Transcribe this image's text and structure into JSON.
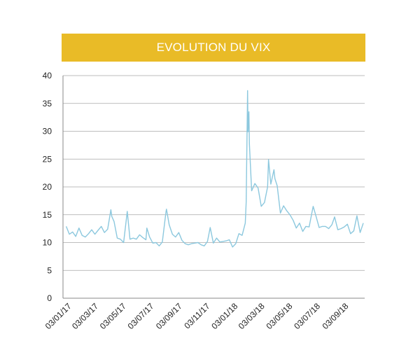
{
  "colors": {
    "banner": "#e9bb27",
    "line": "#8cc8de",
    "grid": "#a8a8a8",
    "axis": "#888888"
  },
  "chart_data": {
    "type": "line",
    "title": "EVOLUTION DU VIX",
    "xlabel": "",
    "ylabel": "",
    "ylim": [
      0,
      40
    ],
    "yticks": [
      "0",
      "5",
      "10",
      "15",
      "20",
      "25",
      "30",
      "35",
      "40"
    ],
    "xtick_labels": [
      "03/01/17",
      "03/03/17",
      "03/05/17",
      "03/07/17",
      "03/09/17",
      "03/11/17",
      "03/01/18",
      "03/03/18",
      "03/05/18",
      "03/07/18",
      "03/09/18"
    ],
    "grid": true,
    "legend": "none",
    "series": [
      {
        "x": [
          "2017-01-03",
          "2017-01-10",
          "2017-01-17",
          "2017-01-24",
          "2017-01-31",
          "2017-02-07",
          "2017-02-14",
          "2017-02-21",
          "2017-02-28",
          "2017-03-07",
          "2017-03-14",
          "2017-03-21",
          "2017-03-28",
          "2017-04-04",
          "2017-04-11",
          "2017-04-13",
          "2017-04-18",
          "2017-04-25",
          "2017-05-02",
          "2017-05-09",
          "2017-05-17",
          "2017-05-23",
          "2017-05-30",
          "2017-06-06",
          "2017-06-13",
          "2017-06-20",
          "2017-06-27",
          "2017-06-29",
          "2017-07-05",
          "2017-07-12",
          "2017-07-19",
          "2017-07-26",
          "2017-08-02",
          "2017-08-10",
          "2017-08-11",
          "2017-08-17",
          "2017-08-24",
          "2017-08-31",
          "2017-09-07",
          "2017-09-14",
          "2017-09-21",
          "2017-09-28",
          "2017-10-05",
          "2017-10-12",
          "2017-10-19",
          "2017-10-26",
          "2017-11-02",
          "2017-11-09",
          "2017-11-15",
          "2017-11-22",
          "2017-11-29",
          "2017-12-06",
          "2017-12-13",
          "2017-12-20",
          "2017-12-27",
          "2018-01-03",
          "2018-01-10",
          "2018-01-17",
          "2018-01-24",
          "2018-01-31",
          "2018-02-02",
          "2018-02-05",
          "2018-02-06",
          "2018-02-08",
          "2018-02-09",
          "2018-02-14",
          "2018-02-21",
          "2018-02-28",
          "2018-03-07",
          "2018-03-14",
          "2018-03-21",
          "2018-03-23",
          "2018-03-28",
          "2018-04-04",
          "2018-04-06",
          "2018-04-11",
          "2018-04-18",
          "2018-04-25",
          "2018-05-02",
          "2018-05-09",
          "2018-05-16",
          "2018-05-23",
          "2018-05-30",
          "2018-06-06",
          "2018-06-13",
          "2018-06-20",
          "2018-06-27",
          "2018-06-29",
          "2018-07-05",
          "2018-07-12",
          "2018-07-19",
          "2018-07-26",
          "2018-08-02",
          "2018-08-09",
          "2018-08-15",
          "2018-08-22",
          "2018-08-29",
          "2018-09-05",
          "2018-09-12",
          "2018-09-19",
          "2018-09-26",
          "2018-10-03",
          "2018-10-10",
          "2018-10-17"
        ],
        "values": [
          12.9,
          11.5,
          11.9,
          11.1,
          12.6,
          11.3,
          11.0,
          11.6,
          12.3,
          11.5,
          12.2,
          12.9,
          11.8,
          12.4,
          15.9,
          14.7,
          13.8,
          10.8,
          10.6,
          10.0,
          15.6,
          10.6,
          10.8,
          10.6,
          11.4,
          10.9,
          10.5,
          12.6,
          11.0,
          9.9,
          10.0,
          9.4,
          10.1,
          15.5,
          16.0,
          13.2,
          11.5,
          11.0,
          11.8,
          10.4,
          9.8,
          9.6,
          9.8,
          9.9,
          10.0,
          9.6,
          9.4,
          10.2,
          12.7,
          9.9,
          10.8,
          10.1,
          10.2,
          10.3,
          10.5,
          9.2,
          9.8,
          11.6,
          11.3,
          13.5,
          17.3,
          37.3,
          29.9,
          33.5,
          27.7,
          19.3,
          20.6,
          19.8,
          16.5,
          17.2,
          20.0,
          24.9,
          20.5,
          23.1,
          21.5,
          20.2,
          15.3,
          16.6,
          15.7,
          15.0,
          14.0,
          12.6,
          13.5,
          12.0,
          12.9,
          12.8,
          15.7,
          16.5,
          14.8,
          12.7,
          12.9,
          12.9,
          12.5,
          13.2,
          14.6,
          12.3,
          12.5,
          12.8,
          13.3,
          11.6,
          12.1,
          14.8,
          11.8,
          13.5
        ]
      }
    ]
  }
}
